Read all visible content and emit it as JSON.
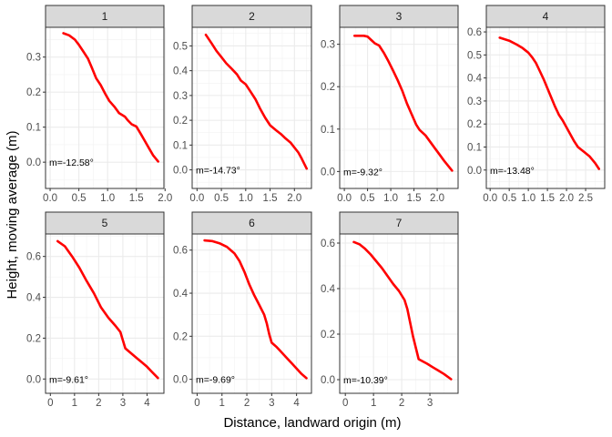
{
  "chart_data": {
    "type": "line",
    "xlabel": "Distance, landward origin (m)",
    "ylabel": "Height, moving average (m)",
    "line_color": "#ff0000",
    "strip_fill": "#d9d9d9",
    "grid": true,
    "facets": [
      {
        "label": "1",
        "annotation": "m=-12.58°",
        "xlim": [
          -0.08,
          1.98
        ],
        "ylim": [
          -0.075,
          0.385
        ],
        "xticks": [
          0,
          0.5,
          1,
          1.5,
          2
        ],
        "xtick_labels": [
          "0.0",
          "0.5",
          "1.0",
          "1.5",
          "2.0"
        ],
        "yticks": [
          0,
          0.1,
          0.2,
          0.3
        ],
        "ytick_labels": [
          "0.0",
          "0.1",
          "0.2",
          "0.3"
        ],
        "x": [
          0.23,
          0.33,
          0.43,
          0.5,
          0.58,
          0.66,
          0.72,
          0.8,
          0.88,
          0.96,
          1.03,
          1.12,
          1.2,
          1.3,
          1.35,
          1.42,
          1.5,
          1.58,
          1.65,
          1.72,
          1.79,
          1.88
        ],
        "y": [
          0.368,
          0.362,
          0.35,
          0.335,
          0.315,
          0.295,
          0.272,
          0.24,
          0.22,
          0.195,
          0.175,
          0.158,
          0.14,
          0.13,
          0.12,
          0.108,
          0.102,
          0.08,
          0.06,
          0.04,
          0.02,
          0.002
        ]
      },
      {
        "label": "2",
        "annotation": "m=-14.73°",
        "xlim": [
          -0.1,
          2.35
        ],
        "ylim": [
          -0.075,
          0.575
        ],
        "xticks": [
          0,
          0.5,
          1,
          1.5,
          2
        ],
        "xtick_labels": [
          "0.0",
          "0.5",
          "1.0",
          "1.5",
          "2.0"
        ],
        "yticks": [
          0,
          0.1,
          0.2,
          0.3,
          0.4,
          0.5
        ],
        "ytick_labels": [
          "0.0",
          "0.1",
          "0.2",
          "0.3",
          "0.4",
          "0.5"
        ],
        "x": [
          0.18,
          0.3,
          0.4,
          0.5,
          0.6,
          0.7,
          0.82,
          0.9,
          1.0,
          1.1,
          1.2,
          1.3,
          1.4,
          1.5,
          1.62,
          1.72,
          1.8,
          1.92,
          2.0,
          2.08,
          2.15,
          2.25
        ],
        "y": [
          0.545,
          0.51,
          0.48,
          0.455,
          0.43,
          0.41,
          0.385,
          0.36,
          0.345,
          0.315,
          0.285,
          0.245,
          0.21,
          0.18,
          0.16,
          0.145,
          0.13,
          0.11,
          0.09,
          0.07,
          0.045,
          0.005
        ]
      },
      {
        "label": "3",
        "annotation": "m=-9.32°",
        "xlim": [
          -0.1,
          2.45
        ],
        "ylim": [
          -0.04,
          0.34
        ],
        "xticks": [
          0,
          0.5,
          1,
          1.5,
          2
        ],
        "xtick_labels": [
          "0.0",
          "0.5",
          "1.0",
          "1.5",
          "2.0"
        ],
        "yticks": [
          0,
          0.1,
          0.2,
          0.3
        ],
        "ytick_labels": [
          "0.0",
          "0.1",
          "0.2",
          "0.3"
        ],
        "x": [
          0.22,
          0.32,
          0.42,
          0.5,
          0.58,
          0.66,
          0.75,
          0.85,
          0.95,
          1.05,
          1.15,
          1.25,
          1.35,
          1.45,
          1.55,
          1.62,
          1.75,
          1.85,
          1.95,
          2.05,
          2.15,
          2.32
        ],
        "y": [
          0.32,
          0.32,
          0.32,
          0.318,
          0.31,
          0.302,
          0.297,
          0.28,
          0.26,
          0.238,
          0.215,
          0.19,
          0.16,
          0.135,
          0.11,
          0.098,
          0.085,
          0.07,
          0.055,
          0.04,
          0.025,
          0.002
        ]
      },
      {
        "label": "4",
        "annotation": "m=-13.48°",
        "xlim": [
          -0.1,
          3.0
        ],
        "ylim": [
          -0.08,
          0.62
        ],
        "xticks": [
          0,
          0.5,
          1,
          1.5,
          2,
          2.5
        ],
        "xtick_labels": [
          "0.0",
          "0.5",
          "1.0",
          "1.5",
          "2.0",
          "2.5"
        ],
        "yticks": [
          0,
          0.1,
          0.2,
          0.3,
          0.4,
          0.5,
          0.6
        ],
        "ytick_labels": [
          "0.0",
          "0.1",
          "0.2",
          "0.3",
          "0.4",
          "0.5",
          "0.6"
        ],
        "x": [
          0.25,
          0.5,
          0.7,
          0.85,
          1.0,
          1.1,
          1.2,
          1.3,
          1.4,
          1.5,
          1.6,
          1.7,
          1.8,
          1.9,
          2.0,
          2.1,
          2.2,
          2.3,
          2.45,
          2.6,
          2.75,
          2.85
        ],
        "y": [
          0.575,
          0.562,
          0.545,
          0.53,
          0.51,
          0.49,
          0.465,
          0.43,
          0.395,
          0.355,
          0.315,
          0.275,
          0.24,
          0.215,
          0.185,
          0.155,
          0.125,
          0.1,
          0.08,
          0.06,
          0.03,
          0.005
        ]
      },
      {
        "label": "5",
        "annotation": "m=-9.61°",
        "xlim": [
          -0.2,
          4.7
        ],
        "ylim": [
          -0.07,
          0.71
        ],
        "xticks": [
          0,
          1,
          2,
          3,
          4
        ],
        "xtick_labels": [
          "0",
          "1",
          "2",
          "3",
          "4"
        ],
        "yticks": [
          0,
          0.2,
          0.4,
          0.6
        ],
        "ytick_labels": [
          "0.0",
          "0.2",
          "0.4",
          "0.6"
        ],
        "x": [
          0.3,
          0.6,
          0.9,
          1.2,
          1.5,
          1.8,
          2.1,
          2.4,
          2.7,
          2.9,
          3.0,
          3.1,
          3.2,
          3.4,
          3.6,
          3.8,
          4.0,
          4.2,
          4.45
        ],
        "y": [
          0.675,
          0.65,
          0.6,
          0.545,
          0.48,
          0.42,
          0.35,
          0.3,
          0.26,
          0.23,
          0.19,
          0.15,
          0.14,
          0.12,
          0.1,
          0.08,
          0.06,
          0.035,
          0.005
        ]
      },
      {
        "label": "6",
        "annotation": "m=-9.69°",
        "xlim": [
          -0.2,
          4.6
        ],
        "ylim": [
          -0.065,
          0.675
        ],
        "xticks": [
          0,
          1,
          2,
          3,
          4
        ],
        "xtick_labels": [
          "0",
          "1",
          "2",
          "3",
          "4"
        ],
        "yticks": [
          0,
          0.2,
          0.4,
          0.6
        ],
        "ytick_labels": [
          "0.0",
          "0.2",
          "0.4",
          "0.6"
        ],
        "x": [
          0.3,
          0.6,
          0.9,
          1.2,
          1.5,
          1.7,
          1.9,
          2.1,
          2.3,
          2.5,
          2.7,
          2.8,
          2.9,
          3.0,
          3.2,
          3.4,
          3.6,
          3.8,
          4.0,
          4.2,
          4.4
        ],
        "y": [
          0.645,
          0.642,
          0.632,
          0.615,
          0.585,
          0.55,
          0.5,
          0.44,
          0.39,
          0.345,
          0.3,
          0.26,
          0.21,
          0.17,
          0.15,
          0.125,
          0.1,
          0.075,
          0.05,
          0.025,
          0.005
        ]
      },
      {
        "label": "7",
        "annotation": "m=-10.39°",
        "xlim": [
          -0.2,
          4.0
        ],
        "ylim": [
          -0.06,
          0.64
        ],
        "xticks": [
          0,
          1,
          2,
          3
        ],
        "xtick_labels": [
          "0",
          "1",
          "2",
          "3"
        ],
        "yticks": [
          0,
          0.2,
          0.4,
          0.6
        ],
        "ytick_labels": [
          "0.0",
          "0.2",
          "0.4",
          "0.6"
        ],
        "x": [
          0.3,
          0.5,
          0.7,
          0.9,
          1.1,
          1.3,
          1.5,
          1.7,
          1.9,
          2.1,
          2.2,
          2.3,
          2.4,
          2.5,
          2.6,
          2.75,
          2.9,
          3.1,
          3.3,
          3.5,
          3.75
        ],
        "y": [
          0.605,
          0.595,
          0.575,
          0.55,
          0.52,
          0.49,
          0.455,
          0.42,
          0.39,
          0.35,
          0.31,
          0.25,
          0.19,
          0.14,
          0.09,
          0.08,
          0.07,
          0.055,
          0.04,
          0.025,
          0.002
        ]
      }
    ]
  }
}
